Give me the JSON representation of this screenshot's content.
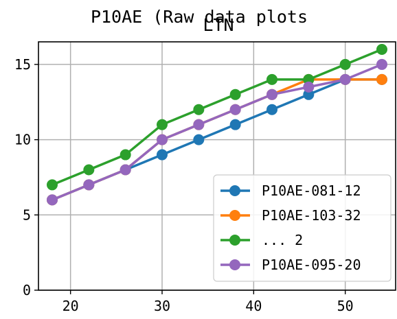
{
  "chart_data": {
    "type": "line",
    "title": "P10AE (Raw data plots",
    "subtitle": "LTN",
    "xlabel": "",
    "ylabel": "",
    "x": [
      18,
      22,
      26,
      30,
      34,
      38,
      42,
      46,
      50,
      54
    ],
    "xlim": [
      16.5,
      55.5
    ],
    "ylim": [
      0,
      16.5
    ],
    "xticks": [
      20,
      30,
      40,
      50
    ],
    "yticks": [
      0,
      5,
      10,
      15
    ],
    "grid": true,
    "legend_position": "lower-right",
    "series": [
      {
        "name": "P10AE-081-12",
        "color": "#1f77b4",
        "values": [
          6,
          7,
          8,
          9,
          10,
          11,
          12,
          13,
          14,
          14
        ]
      },
      {
        "name": "P10AE-103-32",
        "color": "#ff7f0e",
        "values": [
          6,
          7,
          8,
          10,
          11,
          12,
          13,
          14,
          14,
          14
        ]
      },
      {
        "name": "... 2",
        "color": "#2ca02c",
        "values": [
          7,
          8,
          9,
          11,
          12,
          13,
          14,
          14,
          15,
          16
        ]
      },
      {
        "name": "P10AE-095-20",
        "color": "#9467bd",
        "values": [
          6,
          7,
          8,
          10,
          11,
          12,
          13,
          13.5,
          14,
          15
        ]
      }
    ]
  }
}
